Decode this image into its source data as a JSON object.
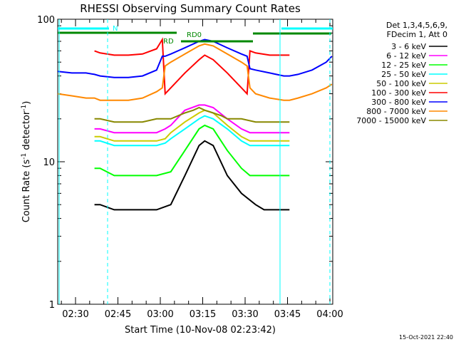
{
  "chart_data": {
    "type": "line",
    "title": "RHESSI Observing Summary Count Rates",
    "xlabel": "Start Time (10-Nov-08 02:23:42)",
    "ylabel": "Count Rate (s",
    "ylabel_sup": "-1",
    "ylabel_rest": " detector",
    "ylabel_sup2": "-1",
    "ylabel_end": ")",
    "x_range": [
      "02:23:42",
      "04:01:00"
    ],
    "y_range": [
      1,
      100
    ],
    "y_scale": "log",
    "y_ticks": [
      {
        "value": 1,
        "label": "1"
      },
      {
        "value": 10,
        "label": "10"
      },
      {
        "value": 100,
        "label": "100"
      }
    ],
    "x_ticks": [
      {
        "value": 6.3,
        "label": "02:30"
      },
      {
        "value": 21.3,
        "label": "02:45"
      },
      {
        "value": 36.3,
        "label": "03:00"
      },
      {
        "value": 51.3,
        "label": "03:15"
      },
      {
        "value": 66.3,
        "label": "03:30"
      },
      {
        "value": 81.3,
        "label": "03:45"
      },
      {
        "value": 96.3,
        "label": "04:00"
      }
    ],
    "legend": {
      "position": "top-right",
      "header": [
        "Det 1,3,4,5,6,9,",
        "FDecim 1, Att 0"
      ],
      "entries": [
        {
          "label": "3 - 6 keV",
          "color": "#000000"
        },
        {
          "label": "6 - 12 keV",
          "color": "#ff00ff"
        },
        {
          "label": "12 - 25 keV",
          "color": "#00ff00"
        },
        {
          "label": "25 - 50 keV",
          "color": "#00ffff"
        },
        {
          "label": "50 - 100 keV",
          "color": "#cccc00"
        },
        {
          "label": "100 - 300 keV",
          "color": "#ff0000"
        },
        {
          "label": "300 - 800 keV",
          "color": "#0000ff"
        },
        {
          "label": "800 - 7000 keV",
          "color": "#ff8800"
        },
        {
          "label": "7000 - 15000 keV",
          "color": "#888800"
        }
      ]
    },
    "annotations": [
      {
        "label": "N",
        "color": "#00ffff"
      },
      {
        "label": "RD",
        "color": "#008800"
      },
      {
        "label": "RD0",
        "color": "#008800"
      }
    ],
    "series": [
      {
        "name": "3 - 6 keV",
        "color": "#000000",
        "x": [
          13,
          15,
          20,
          25,
          30,
          35,
          40,
          45,
          50,
          52,
          55,
          60,
          65,
          70,
          73,
          75,
          80,
          82
        ],
        "y": [
          5,
          5,
          4.6,
          4.6,
          4.6,
          4.6,
          5,
          8,
          13,
          14,
          13,
          8,
          6,
          5,
          4.6,
          4.6,
          4.6,
          4.6
        ]
      },
      {
        "name": "6 - 12 keV",
        "color": "#ff00ff",
        "x": [
          13,
          15,
          20,
          25,
          30,
          35,
          38,
          40,
          45,
          50,
          52,
          55,
          60,
          65,
          68,
          70,
          75,
          80,
          82
        ],
        "y": [
          17,
          17,
          16,
          16,
          16,
          16,
          17,
          18,
          23,
          25,
          25,
          24,
          20,
          17,
          16,
          16,
          16,
          16,
          16
        ]
      },
      {
        "name": "12 - 25 keV",
        "color": "#00ff00",
        "x": [
          13,
          15,
          20,
          25,
          30,
          35,
          40,
          45,
          50,
          52,
          55,
          60,
          65,
          68,
          70,
          75,
          80,
          82
        ],
        "y": [
          9,
          9,
          8,
          8,
          8,
          8,
          8.5,
          12,
          17,
          18,
          17,
          12,
          9,
          8,
          8,
          8,
          8,
          8
        ]
      },
      {
        "name": "25 - 50 keV",
        "color": "#00ffff",
        "x": [
          13,
          15,
          20,
          25,
          30,
          35,
          38,
          40,
          45,
          50,
          52,
          55,
          60,
          65,
          68,
          70,
          75,
          80,
          82
        ],
        "y": [
          14,
          14,
          13,
          13,
          13,
          13,
          13.5,
          14.5,
          17,
          20,
          21,
          20,
          17,
          14,
          13,
          13,
          13,
          13,
          13
        ]
      },
      {
        "name": "50 - 100 keV",
        "color": "#cccc00",
        "x": [
          13,
          15,
          20,
          25,
          30,
          35,
          38,
          40,
          45,
          50,
          52,
          55,
          60,
          65,
          68,
          70,
          75,
          80,
          82
        ],
        "y": [
          15,
          15,
          14,
          14,
          14,
          14,
          14.5,
          16,
          19,
          22,
          23,
          22,
          18,
          15,
          14,
          14,
          14,
          14,
          14
        ]
      },
      {
        "name": "100 - 300 keV",
        "color": "#ff0000",
        "x": [
          13,
          15,
          20,
          25,
          30,
          35,
          37,
          38,
          40,
          45,
          50,
          52,
          55,
          60,
          65,
          67,
          68,
          70,
          75,
          80,
          82
        ],
        "y": [
          60,
          58,
          56,
          56,
          57,
          62,
          72,
          30,
          33,
          42,
          52,
          56,
          52,
          42,
          33,
          30,
          60,
          58,
          56,
          56,
          56
        ]
      },
      {
        "name": "300 - 800 keV",
        "color": "#0000ff",
        "x": [
          0,
          5,
          10,
          13,
          15,
          20,
          25,
          30,
          35,
          37,
          38,
          40,
          45,
          50,
          52,
          55,
          60,
          65,
          67,
          68,
          70,
          75,
          80,
          82,
          85,
          90,
          95,
          97
        ],
        "y": [
          43,
          42,
          42,
          41,
          40,
          39,
          39,
          40,
          44,
          55,
          55,
          57,
          63,
          70,
          72,
          70,
          63,
          57,
          55,
          45,
          44,
          42,
          40,
          40,
          41,
          44,
          50,
          55
        ]
      },
      {
        "name": "800 - 7000 keV",
        "color": "#ff8800",
        "x": [
          0,
          5,
          10,
          13,
          15,
          20,
          25,
          30,
          35,
          37,
          38,
          40,
          45,
          50,
          52,
          55,
          60,
          65,
          67,
          68,
          70,
          75,
          80,
          82,
          85,
          90,
          95,
          97
        ],
        "y": [
          30,
          29,
          28,
          28,
          27,
          27,
          27,
          28,
          31,
          33,
          47,
          50,
          57,
          65,
          67,
          65,
          57,
          50,
          47,
          33,
          30,
          28,
          27,
          27,
          28,
          30,
          33,
          35
        ]
      },
      {
        "name": "7000 - 15000 keV",
        "color": "#888800",
        "x": [
          13,
          15,
          20,
          25,
          30,
          35,
          40,
          45,
          48,
          50,
          52,
          55,
          58,
          60,
          65,
          70,
          75,
          80,
          82
        ],
        "y": [
          20,
          20,
          19,
          19,
          19,
          20,
          20,
          22,
          23,
          24,
          23,
          22,
          21,
          20,
          20,
          19,
          19,
          19,
          19
        ]
      }
    ]
  },
  "footer": {
    "timestamp": "15-Oct-2021 22:40"
  }
}
